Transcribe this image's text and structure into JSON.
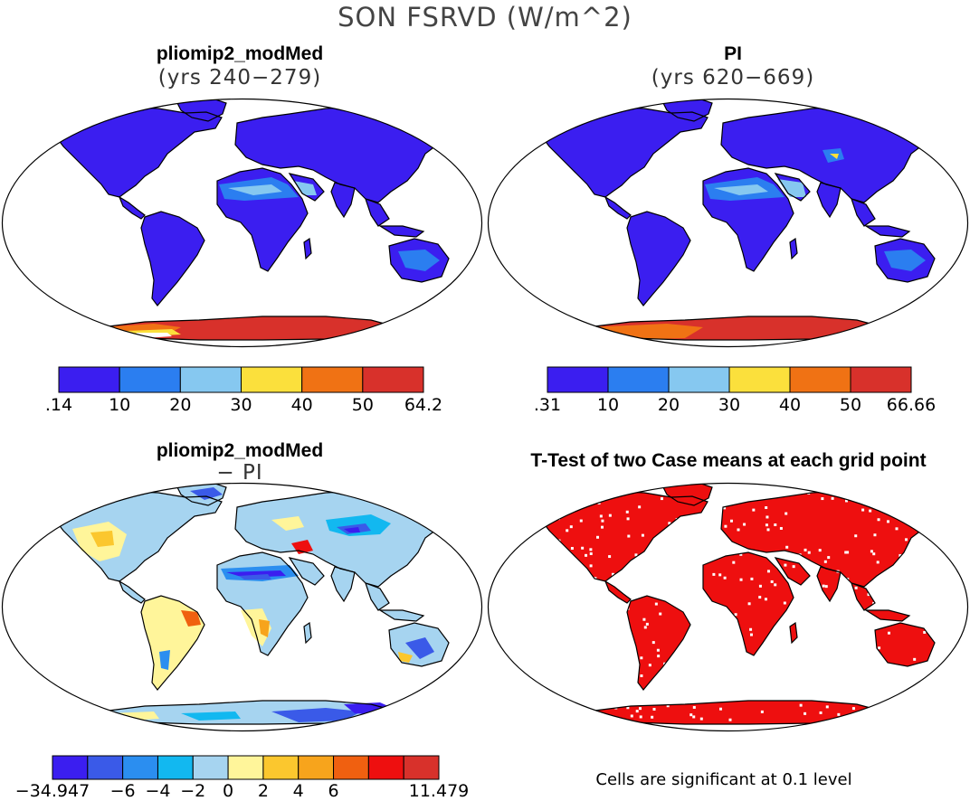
{
  "figure": {
    "title": "SON FSRVD (W/m^2)"
  },
  "panels": [
    {
      "id": "modmed",
      "title": "pliomip2_modMed",
      "subtitle": "(yrs 240−279)",
      "colorbar": {
        "colors": [
          "#3b1ef0",
          "#2b7ef0",
          "#86c8f0",
          "#fbe03c",
          "#f07214",
          "#d8312b"
        ],
        "labels": [
          ".14",
          "10",
          "20",
          "30",
          "40",
          "50",
          "64.2"
        ]
      }
    },
    {
      "id": "pi",
      "title": "PI",
      "subtitle": "(yrs 620−669)",
      "colorbar": {
        "colors": [
          "#3b1ef0",
          "#2b7ef0",
          "#86c8f0",
          "#fbe03c",
          "#f07214",
          "#d8312b"
        ],
        "labels": [
          ".31",
          "10",
          "20",
          "30",
          "40",
          "50",
          "66.66"
        ]
      }
    },
    {
      "id": "diff",
      "title": "pliomip2_modMed",
      "subtitle": "− PI",
      "colorbar": {
        "colors": [
          "#3b1ef0",
          "#3a5ae8",
          "#2b8ef0",
          "#12b8f0",
          "#a6d4f0",
          "#fff59a",
          "#fbc72e",
          "#f7a41c",
          "#f06010",
          "#ee0f0f",
          "#d8312b"
        ],
        "labels": [
          "−34.947",
          "−6",
          "−4",
          "−2",
          "0",
          "2",
          "4",
          "6",
          "11.479"
        ]
      }
    },
    {
      "id": "ttest",
      "title": "T-Test of two Case means at each grid point",
      "footnote": "Cells are significant at 0.1 level",
      "colors": {
        "significant": "#ee0f0f"
      }
    }
  ]
}
